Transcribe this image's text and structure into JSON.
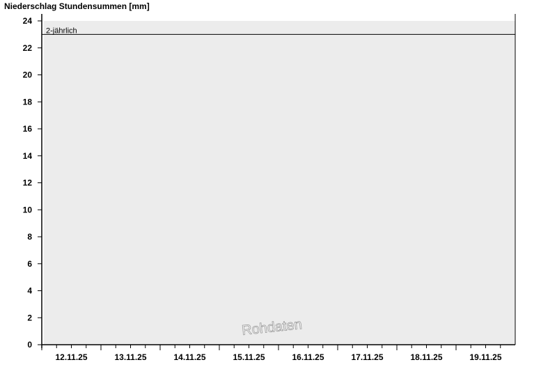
{
  "chart_data": {
    "type": "bar",
    "title": "Niederschlag Stundensummen [mm]",
    "xlabel": "",
    "ylabel": "",
    "categories": [
      "12.11.25",
      "13.11.25",
      "14.11.25",
      "15.11.25",
      "16.11.25",
      "17.11.25",
      "18.11.25",
      "19.11.25"
    ],
    "series": [],
    "ylim": [
      0,
      24
    ],
    "yticks": [
      0,
      2,
      4,
      6,
      8,
      10,
      12,
      14,
      16,
      18,
      20,
      22,
      24
    ],
    "grid": false,
    "reference_lines": [
      {
        "label": "2-jährlich",
        "value": 23
      }
    ],
    "watermark": "Rohdaten",
    "colors": {
      "plot_background": "#ececec",
      "axis": "#000000"
    }
  }
}
